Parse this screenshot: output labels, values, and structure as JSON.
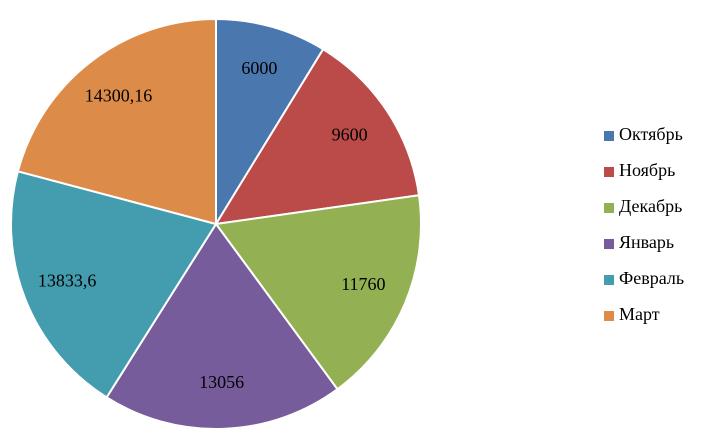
{
  "chart_data": {
    "type": "pie",
    "categories": [
      "Октябрь",
      "Ноябрь",
      "Декабрь",
      "Январь",
      "Февраль",
      "Март"
    ],
    "values": [
      6000,
      9600,
      11760,
      13056,
      13833.6,
      14300.16
    ],
    "value_labels": [
      "6000",
      "9600",
      "11760",
      "13056",
      "13833,6",
      "14300,16"
    ],
    "colors": [
      "#4a78ae",
      "#bb4b48",
      "#93b052",
      "#775c9b",
      "#449caf",
      "#dc8b48"
    ],
    "legend": "right"
  }
}
